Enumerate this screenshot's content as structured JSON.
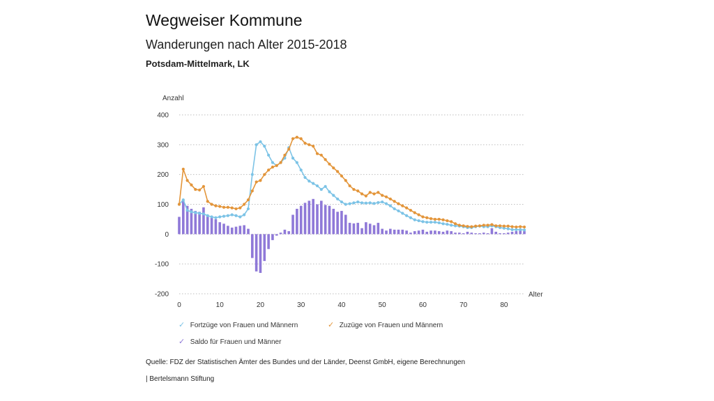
{
  "header": {
    "title": "Wegweiser Kommune",
    "subtitle": "Wanderungen nach Alter 2015-2018",
    "region": "Potsdam-Mittelmark, LK"
  },
  "footer": {
    "source": "Quelle: FDZ der Statistischen Ämter des Bundes und der Länder, Deenst GmbH, eigene Berechnungen",
    "publisher": "| Bertelsmann Stiftung"
  },
  "colors": {
    "fortzuege": "#7cc3e6",
    "zuzuege": "#e3953a",
    "saldo": "#8f79d8",
    "grid": "#bdbdbd",
    "text": "#333333"
  },
  "legend": {
    "check_symbol": "✓",
    "items": [
      {
        "key": "fortzuege",
        "label": "Fortzüge von Frauen und Männern"
      },
      {
        "key": "zuzuege",
        "label": "Zuzüge von Frauen und Männern"
      },
      {
        "key": "saldo",
        "label": "Saldo für Frauen und Männer"
      }
    ]
  },
  "chart_data": {
    "type": "line",
    "title": "",
    "xlabel": "Alter",
    "ylabel": "Anzahl",
    "xlim": [
      0,
      85
    ],
    "ylim": [
      -200,
      400
    ],
    "yticks": [
      -200,
      -100,
      0,
      100,
      200,
      300,
      400
    ],
    "xticks": [
      0,
      10,
      20,
      30,
      40,
      50,
      60,
      70,
      80
    ],
    "grid": "horizontal dotted",
    "legend_position": "bottom",
    "x": [
      0,
      1,
      2,
      3,
      4,
      5,
      6,
      7,
      8,
      9,
      10,
      11,
      12,
      13,
      14,
      15,
      16,
      17,
      18,
      19,
      20,
      21,
      22,
      23,
      24,
      25,
      26,
      27,
      28,
      29,
      30,
      31,
      32,
      33,
      34,
      35,
      36,
      37,
      38,
      39,
      40,
      41,
      42,
      43,
      44,
      45,
      46,
      47,
      48,
      49,
      50,
      51,
      52,
      53,
      54,
      55,
      56,
      57,
      58,
      59,
      60,
      61,
      62,
      63,
      64,
      65,
      66,
      67,
      68,
      69,
      70,
      71,
      72,
      73,
      74,
      75,
      76,
      77,
      78,
      79,
      80,
      81,
      82,
      83,
      84,
      85
    ],
    "series": [
      {
        "name": "Saldo für Frauen und Männer",
        "type": "bar",
        "color": "#8f79d8",
        "values": [
          58,
          115,
          95,
          85,
          78,
          75,
          90,
          60,
          55,
          50,
          40,
          35,
          28,
          22,
          25,
          28,
          30,
          18,
          -80,
          -125,
          -130,
          -90,
          -50,
          -20,
          -5,
          5,
          15,
          10,
          65,
          85,
          95,
          105,
          112,
          118,
          100,
          112,
          98,
          95,
          85,
          75,
          78,
          65,
          38,
          36,
          38,
          20,
          40,
          35,
          30,
          38,
          18,
          12,
          18,
          15,
          15,
          15,
          12,
          5,
          10,
          12,
          15,
          8,
          12,
          12,
          10,
          8,
          12,
          10,
          5,
          5,
          3,
          8,
          5,
          3,
          3,
          5,
          3,
          20,
          8,
          3,
          3,
          5,
          8,
          10,
          12,
          10
        ]
      },
      {
        "name": "Fortzüge von Frauen und Männern",
        "type": "line",
        "color": "#7cc3e6",
        "values": [
          100,
          115,
          80,
          75,
          72,
          70,
          68,
          62,
          58,
          55,
          58,
          60,
          62,
          65,
          62,
          58,
          65,
          85,
          200,
          300,
          310,
          295,
          265,
          240,
          230,
          240,
          255,
          290,
          255,
          240,
          215,
          190,
          178,
          170,
          162,
          150,
          160,
          142,
          130,
          118,
          108,
          100,
          102,
          105,
          108,
          105,
          104,
          105,
          103,
          106,
          108,
          102,
          95,
          85,
          78,
          70,
          62,
          55,
          48,
          45,
          42,
          40,
          40,
          40,
          38,
          35,
          33,
          30,
          28,
          27,
          25,
          22,
          22,
          25,
          27,
          25,
          25,
          28,
          25,
          22,
          20,
          18,
          15,
          15,
          15,
          14
        ]
      },
      {
        "name": "Zuzüge von Frauen und Männern",
        "type": "line",
        "color": "#e3953a",
        "values": [
          100,
          218,
          180,
          165,
          150,
          148,
          160,
          110,
          100,
          95,
          93,
          90,
          90,
          88,
          85,
          88,
          100,
          115,
          145,
          175,
          180,
          200,
          215,
          225,
          230,
          240,
          265,
          285,
          320,
          325,
          320,
          305,
          300,
          295,
          270,
          265,
          250,
          235,
          222,
          210,
          195,
          180,
          162,
          150,
          145,
          135,
          128,
          140,
          135,
          140,
          130,
          125,
          118,
          110,
          102,
          95,
          88,
          80,
          72,
          65,
          58,
          55,
          52,
          50,
          50,
          48,
          45,
          42,
          35,
          30,
          28,
          26,
          25,
          27,
          28,
          30,
          30,
          32,
          28,
          28,
          27,
          27,
          25,
          24,
          25,
          24
        ]
      }
    ]
  }
}
